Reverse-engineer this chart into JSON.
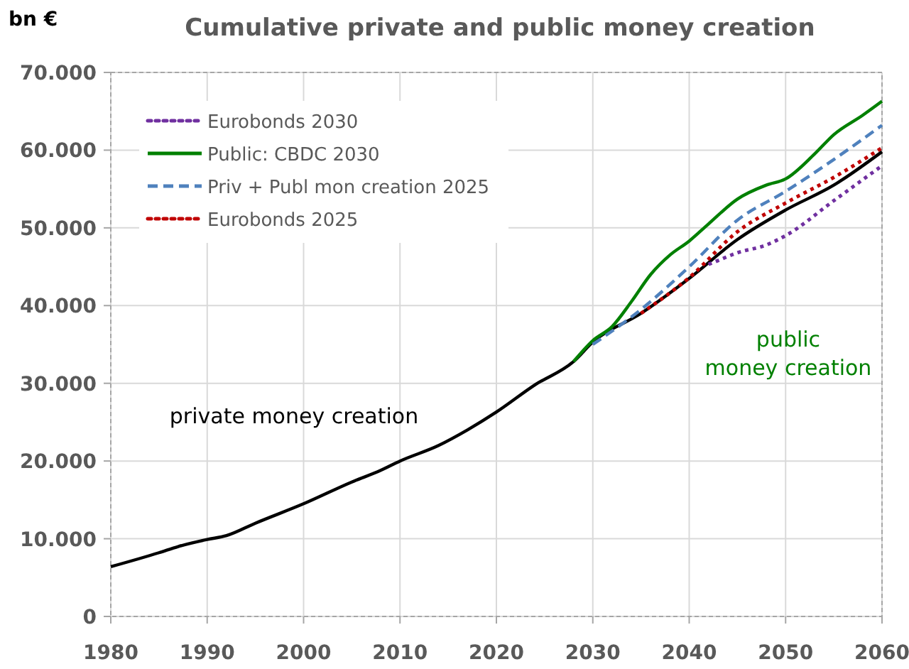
{
  "chart_data": {
    "type": "line",
    "title": "Cumulative private and public money creation",
    "ylabel": "bn €",
    "xlim": [
      1980,
      2060
    ],
    "xticks": [
      1980,
      1990,
      2000,
      2010,
      2020,
      2030,
      2040,
      2050,
      2060
    ],
    "ylim": [
      0,
      70000
    ],
    "yticks": [
      {
        "value": 0,
        "label": "0"
      },
      {
        "value": 10000,
        "label": "10.000"
      },
      {
        "value": 20000,
        "label": "20.000"
      },
      {
        "value": 30000,
        "label": "30.000"
      },
      {
        "value": 40000,
        "label": "40.000"
      },
      {
        "value": 50000,
        "label": "50.000"
      },
      {
        "value": 60000,
        "label": "60.000"
      },
      {
        "value": 70000,
        "label": "70.000"
      }
    ],
    "grid": true,
    "legend": "top left",
    "marker": "none",
    "annotations": [
      "private money creation",
      "public\nmoney creation"
    ],
    "series": [
      {
        "color": "#000000",
        "line_style": "solid",
        "x": [
          1980,
          1985,
          1987,
          1990,
          1992,
          1995,
          2000,
          2005,
          2008,
          2010,
          2014,
          2017,
          2020,
          2024,
          2028,
          2030,
          2035,
          2040,
          2045,
          2050,
          2055,
          2060
        ],
        "values": [
          6400,
          8200,
          9000,
          9900,
          10400,
          12000,
          14500,
          17300,
          18800,
          20000,
          22000,
          24000,
          26300,
          29800,
          32800,
          35300,
          39000,
          43500,
          48500,
          52300,
          55500,
          59800
        ]
      },
      {
        "name": "Eurobonds 2030",
        "color": "#7030a0",
        "line_style": "dotted",
        "x": [
          2042,
          2043,
          2045,
          2048,
          2050,
          2055,
          2060
        ],
        "values": [
          45300,
          45800,
          46800,
          47800,
          49000,
          53500,
          58000
        ]
      },
      {
        "name": "Public: CBDC 2030",
        "color": "#008000",
        "line_style": "solid",
        "x": [
          2028,
          2030,
          2032,
          2034,
          2036,
          2038,
          2040,
          2042,
          2045,
          2048,
          2050,
          2053,
          2055,
          2058,
          2060
        ],
        "values": [
          32800,
          35500,
          37300,
          40500,
          44000,
          46500,
          48300,
          50500,
          53700,
          55500,
          56300,
          59500,
          62000,
          64500,
          66300
        ]
      },
      {
        "name": "Priv + Publ mon creation 2025",
        "color": "#4f81bd",
        "line_style": "dashed",
        "x": [
          2030,
          2035,
          2040,
          2045,
          2050,
          2055,
          2060
        ],
        "values": [
          35000,
          39500,
          45000,
          51000,
          54700,
          58800,
          63200
        ]
      },
      {
        "name": "Eurobonds 2025",
        "color": "#c00000",
        "line_style": "dotted",
        "x": [
          2035,
          2040,
          2045,
          2050,
          2055,
          2060
        ],
        "values": [
          39000,
          43600,
          49500,
          53200,
          56500,
          60300
        ]
      }
    ]
  }
}
